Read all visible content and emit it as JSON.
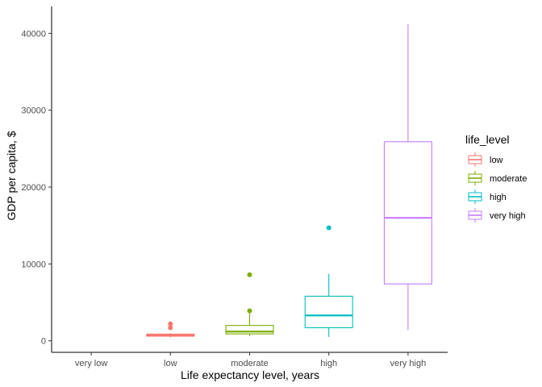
{
  "chart_data": {
    "type": "box",
    "xlabel": "Life expectancy level, years",
    "ylabel": "GDP per capita, $",
    "categories": [
      "very low",
      "low",
      "moderate",
      "high",
      "very high"
    ],
    "ylim": [
      -1500,
      43500
    ],
    "yticks": [
      0,
      10000,
      20000,
      30000,
      40000
    ],
    "grid": false,
    "legend": {
      "title": "life_level",
      "position": "right",
      "entries": [
        {
          "label": "low",
          "color": "#F8766D"
        },
        {
          "label": "moderate",
          "color": "#7CAE00"
        },
        {
          "label": "high",
          "color": "#00BFC4"
        },
        {
          "label": "very high",
          "color": "#C77CFF"
        }
      ]
    },
    "series": [
      {
        "category": "low",
        "color": "#F8766D",
        "whisker_low": 450,
        "q1": 600,
        "median": 720,
        "q3": 870,
        "whisker_high": 1000,
        "outliers": [
          1700,
          2200
        ]
      },
      {
        "category": "moderate",
        "color": "#7CAE00",
        "whisker_low": 600,
        "q1": 900,
        "median": 1200,
        "q3": 2000,
        "whisker_high": 3800,
        "outliers": [
          3900,
          8600
        ]
      },
      {
        "category": "high",
        "color": "#00BFC4",
        "whisker_low": 500,
        "q1": 1700,
        "median": 3300,
        "q3": 5800,
        "whisker_high": 8700,
        "outliers": [
          14700
        ]
      },
      {
        "category": "very high",
        "color": "#C77CFF",
        "whisker_low": 1400,
        "q1": 7400,
        "median": 16000,
        "q3": 25900,
        "whisker_high": 41200,
        "outliers": []
      }
    ]
  }
}
